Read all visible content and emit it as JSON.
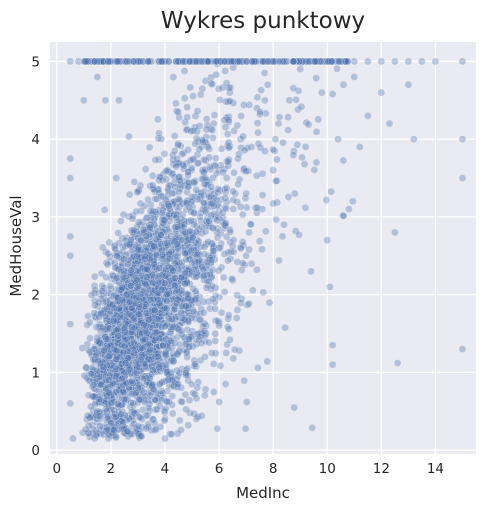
{
  "chart_data": {
    "type": "scatter",
    "title": "Wykres punktowy",
    "xlabel": "MedInc",
    "ylabel": "MedHouseVal",
    "xlim": [
      -0.25,
      15.5
    ],
    "ylim": [
      -0.05,
      5.25
    ],
    "x_ticks": [
      0,
      2,
      4,
      6,
      8,
      10,
      12,
      14
    ],
    "y_ticks": [
      0,
      1,
      2,
      3,
      4,
      5
    ],
    "grid": true,
    "legend": "none",
    "colors": {
      "background": "#eaeaf2",
      "grid": "#ffffff",
      "point": "#4c72b0",
      "point_alpha": 0.35
    },
    "series": [
      {
        "points": [
          [
            0.5,
            5.0
          ],
          [
            0.8,
            5.0
          ],
          [
            1.2,
            5.0
          ],
          [
            1.6,
            5.0
          ],
          [
            2.0,
            5.0
          ],
          [
            2.5,
            5.0
          ],
          [
            3.0,
            5.0
          ],
          [
            3.5,
            5.0
          ],
          [
            4.0,
            5.0
          ],
          [
            4.5,
            5.0
          ],
          [
            5.0,
            5.0
          ],
          [
            5.5,
            5.0
          ],
          [
            6.0,
            5.0
          ],
          [
            6.5,
            5.0
          ],
          [
            7.0,
            5.0
          ],
          [
            7.5,
            5.0
          ],
          [
            8.0,
            5.0
          ],
          [
            8.5,
            5.0
          ],
          [
            9.0,
            5.0
          ],
          [
            9.5,
            5.0
          ],
          [
            10.0,
            5.0
          ],
          [
            10.5,
            5.0
          ],
          [
            11.0,
            5.0
          ],
          [
            11.5,
            5.0
          ],
          [
            12.0,
            5.0
          ],
          [
            12.5,
            5.0
          ],
          [
            13.0,
            5.0
          ],
          [
            13.5,
            5.0
          ],
          [
            14.0,
            5.0
          ],
          [
            15.0,
            5.0
          ],
          [
            0.5,
            3.75
          ],
          [
            0.5,
            3.5
          ],
          [
            0.5,
            2.75
          ],
          [
            0.5,
            2.5
          ],
          [
            0.5,
            1.62
          ],
          [
            0.5,
            0.6
          ],
          [
            0.6,
            0.15
          ],
          [
            1.0,
            4.5
          ],
          [
            1.8,
            4.5
          ],
          [
            2.3,
            4.5
          ],
          [
            1.5,
            4.8
          ],
          [
            2.2,
            3.5
          ],
          [
            2.0,
            2.0
          ],
          [
            1.5,
            1.75
          ],
          [
            1.2,
            1.0
          ],
          [
            1.8,
            0.8
          ],
          [
            1.5,
            0.5
          ],
          [
            2.0,
            0.4
          ],
          [
            2.5,
            0.3
          ],
          [
            3.0,
            0.25
          ],
          [
            4.0,
            0.15
          ],
          [
            2.5,
            1.5
          ],
          [
            2.8,
            2.1
          ],
          [
            3.0,
            1.1
          ],
          [
            3.2,
            1.8
          ],
          [
            3.4,
            2.4
          ],
          [
            3.6,
            2.9
          ],
          [
            3.8,
            1.6
          ],
          [
            4.0,
            2.2
          ],
          [
            4.2,
            3.0
          ],
          [
            4.4,
            2.6
          ],
          [
            4.6,
            3.4
          ],
          [
            4.8,
            2.0
          ],
          [
            5.0,
            2.8
          ],
          [
            5.2,
            3.8
          ],
          [
            5.4,
            3.1
          ],
          [
            5.6,
            2.5
          ],
          [
            5.8,
            4.2
          ],
          [
            6.0,
            3.6
          ],
          [
            6.2,
            2.9
          ],
          [
            6.4,
            4.6
          ],
          [
            6.6,
            3.3
          ],
          [
            6.8,
            4.0
          ],
          [
            7.0,
            2.5
          ],
          [
            7.2,
            3.9
          ],
          [
            7.4,
            4.4
          ],
          [
            7.6,
            3.1
          ],
          [
            7.8,
            4.7
          ],
          [
            8.0,
            3.6
          ],
          [
            8.2,
            4.2
          ],
          [
            8.4,
            2.9
          ],
          [
            8.6,
            4.5
          ],
          [
            8.8,
            3.3
          ],
          [
            9.0,
            4.9
          ],
          [
            9.2,
            3.9
          ],
          [
            9.4,
            2.3
          ],
          [
            9.6,
            3.7
          ],
          [
            9.8,
            4.6
          ],
          [
            10.0,
            2.7
          ],
          [
            10.1,
            2.1
          ],
          [
            10.2,
            1.1
          ],
          [
            10.2,
            1.35
          ],
          [
            10.4,
            4.0
          ],
          [
            10.6,
            4.7
          ],
          [
            10.8,
            3.1
          ],
          [
            11.0,
            4.8
          ],
          [
            11.2,
            3.9
          ],
          [
            11.5,
            4.3
          ],
          [
            12.0,
            4.6
          ],
          [
            12.3,
            4.2
          ],
          [
            12.5,
            2.8
          ],
          [
            12.6,
            1.12
          ],
          [
            13.0,
            4.7
          ],
          [
            13.2,
            4.0
          ],
          [
            15.0,
            4.0
          ],
          [
            15.0,
            3.5
          ],
          [
            15.0,
            1.3
          ]
        ]
      }
    ]
  }
}
